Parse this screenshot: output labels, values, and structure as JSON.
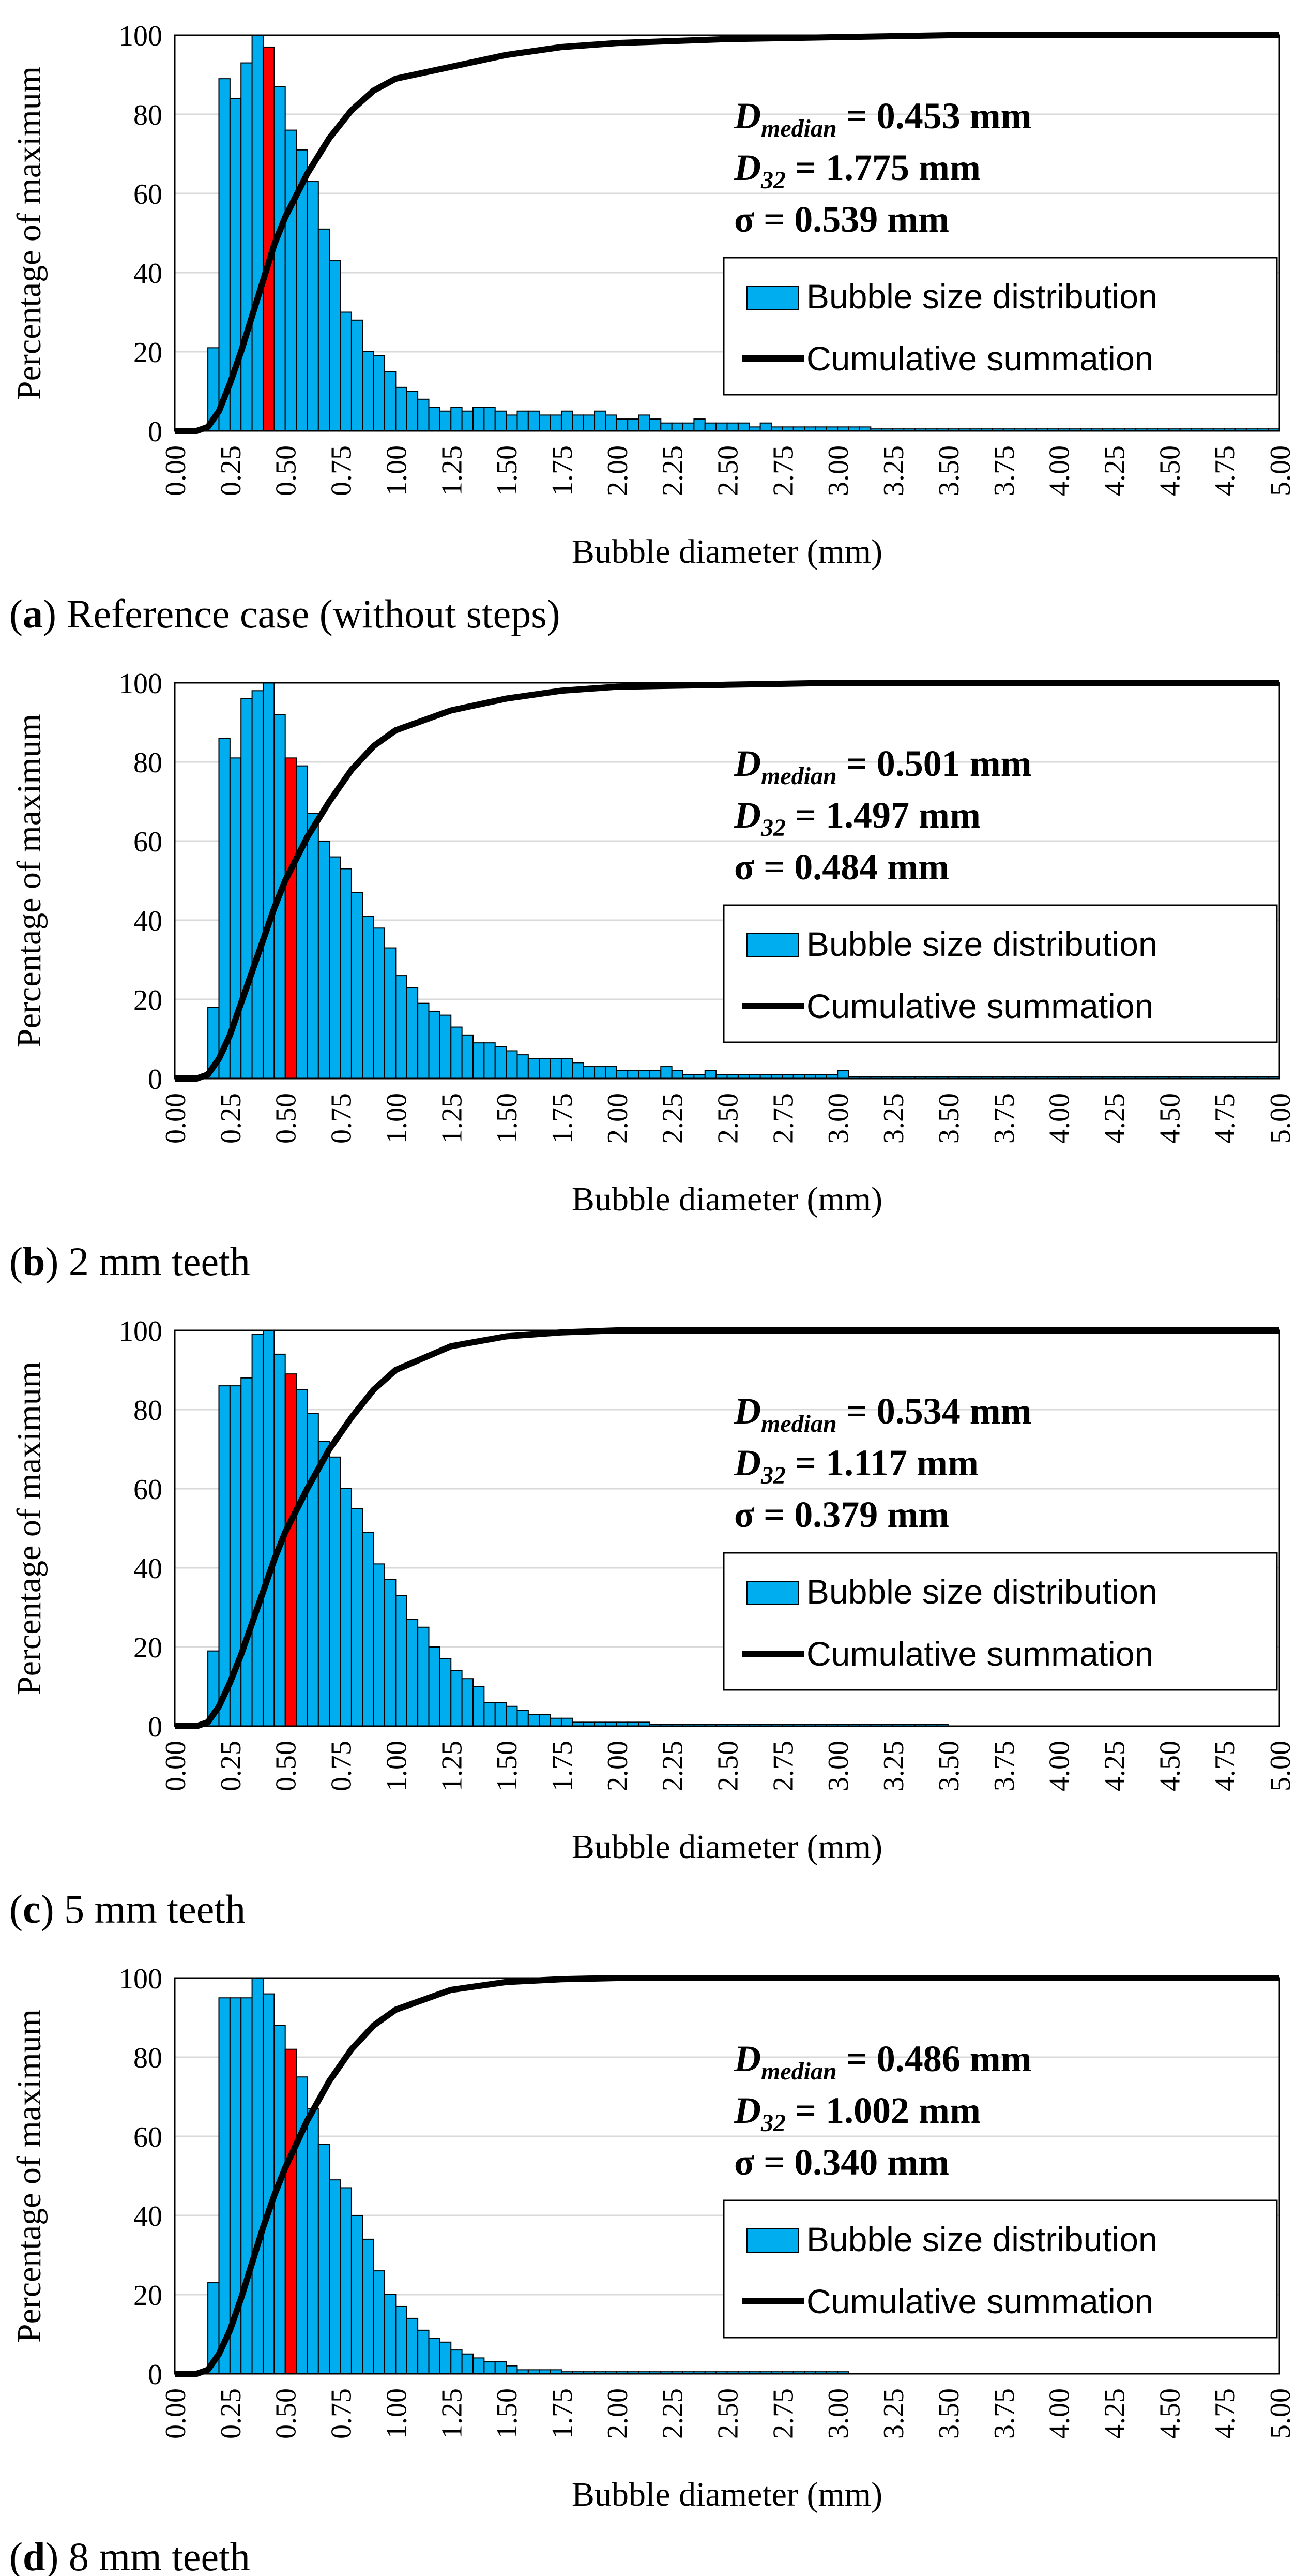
{
  "figure": {
    "colors": {
      "bar": "#00AEEF",
      "median_bar": "#FF0000",
      "bar_edge": "#000000",
      "cumulative_line": "#000000",
      "grid": "#D9D9D9"
    },
    "shared": {
      "ylabel": "Percentage of maximum",
      "xlabel": "Bubble diameter (mm)",
      "xlim": [
        0,
        5
      ],
      "ylim": [
        0,
        100
      ],
      "xticks": [
        "0.00",
        "0.25",
        "0.50",
        "0.75",
        "1.00",
        "1.25",
        "1.50",
        "1.75",
        "2.00",
        "2.25",
        "2.50",
        "2.75",
        "3.00",
        "3.25",
        "3.50",
        "3.75",
        "4.00",
        "4.25",
        "4.50",
        "4.75",
        "5.00"
      ],
      "yticks": [
        "0",
        "20",
        "40",
        "60",
        "80",
        "100"
      ],
      "legend": {
        "bar_label": "Bubble size distribution",
        "line_label": "Cumulative summation"
      },
      "grid": "horizontal",
      "legend_placement": "right",
      "bin_width_mm": 0.05
    }
  },
  "chart_data": [
    {
      "type": "bar",
      "caption": {
        "letter": "a",
        "text": "Reference case (without steps)"
      },
      "stats": {
        "d_median_label": "D",
        "d_median_sub": "median",
        "d_median_value": " = 0.453 mm",
        "d32_label": "D",
        "d32_sub": "32",
        "d32_value": " = 1.775 mm",
        "sigma_label": "σ = 0.539 mm"
      },
      "median_bar_x": 0.425,
      "bins_x": [
        0.025,
        0.075,
        0.125,
        0.175,
        0.225,
        0.275,
        0.325,
        0.375,
        0.425,
        0.475,
        0.525,
        0.575,
        0.625,
        0.675,
        0.725,
        0.775,
        0.825,
        0.875,
        0.925,
        0.975,
        1.025,
        1.075,
        1.125,
        1.175,
        1.225,
        1.275,
        1.325,
        1.375,
        1.425,
        1.475,
        1.525,
        1.575,
        1.625,
        1.675,
        1.725,
        1.775,
        1.825,
        1.875,
        1.925,
        1.975,
        2.025,
        2.075,
        2.125,
        2.175,
        2.225,
        2.275,
        2.325,
        2.375,
        2.425,
        2.475,
        2.525,
        2.575,
        2.625,
        2.675,
        2.725,
        2.775,
        2.825,
        2.875,
        2.925,
        2.975,
        3.025,
        3.075,
        3.125,
        3.175,
        3.225,
        3.275,
        3.325,
        3.375,
        3.425,
        3.475,
        3.525,
        3.575,
        3.625,
        3.675,
        3.725,
        3.775,
        3.825,
        3.875,
        3.925,
        3.975,
        4.025,
        4.075,
        4.125,
        4.175,
        4.225,
        4.275,
        4.325,
        4.375,
        4.425,
        4.475,
        4.525,
        4.575,
        4.625,
        4.675,
        4.725,
        4.775,
        4.825,
        4.875,
        4.925,
        4.975
      ],
      "bar_values": [
        0,
        0,
        0,
        21,
        89,
        84,
        93,
        100,
        97,
        87,
        76,
        71,
        63,
        51,
        43,
        30,
        28,
        20,
        19,
        15,
        11,
        10,
        8,
        6,
        5,
        6,
        5,
        6,
        6,
        5,
        4,
        5,
        5,
        4,
        4,
        5,
        4,
        4,
        5,
        4,
        3,
        3,
        4,
        3,
        2,
        2,
        2,
        3,
        2,
        2,
        2,
        2,
        1,
        2,
        1,
        1,
        1,
        1,
        1,
        1,
        1,
        1,
        1,
        0.5,
        0.5,
        0.5,
        0.5,
        0.5,
        0.5,
        0.5,
        0.5,
        0.5,
        0.5,
        0.5,
        0.5,
        0.5,
        0.5,
        0.5,
        0.5,
        0.5,
        0.5,
        0.5,
        0.5,
        0.5,
        0.5,
        0.5,
        0.5,
        0.5,
        0.5,
        0.5,
        0.5,
        0.5,
        0.5,
        0.5,
        0.5,
        0.5,
        0.5,
        0.5,
        0.5,
        0.5
      ],
      "cumulative": {
        "x": [
          0,
          0.1,
          0.15,
          0.2,
          0.25,
          0.3,
          0.35,
          0.4,
          0.45,
          0.5,
          0.6,
          0.7,
          0.8,
          0.9,
          1.0,
          1.25,
          1.5,
          1.75,
          2.0,
          2.5,
          3.0,
          3.5,
          4.0,
          4.5,
          5.0
        ],
        "y": [
          0,
          0,
          1,
          5,
          12,
          20,
          29,
          38,
          47,
          54,
          65,
          74,
          81,
          86,
          89,
          92,
          95,
          97,
          98,
          99,
          99.5,
          100,
          100,
          100,
          100
        ]
      }
    },
    {
      "type": "bar",
      "caption": {
        "letter": "b",
        "text": "2 mm teeth"
      },
      "stats": {
        "d_median_label": "D",
        "d_median_sub": "median",
        "d_median_value": " = 0.501 mm",
        "d32_label": "D",
        "d32_sub": "32",
        "d32_value": " = 1.497 mm",
        "sigma_label": "σ = 0.484 mm"
      },
      "median_bar_x": 0.525,
      "bins_x": [
        0.025,
        0.075,
        0.125,
        0.175,
        0.225,
        0.275,
        0.325,
        0.375,
        0.425,
        0.475,
        0.525,
        0.575,
        0.625,
        0.675,
        0.725,
        0.775,
        0.825,
        0.875,
        0.925,
        0.975,
        1.025,
        1.075,
        1.125,
        1.175,
        1.225,
        1.275,
        1.325,
        1.375,
        1.425,
        1.475,
        1.525,
        1.575,
        1.625,
        1.675,
        1.725,
        1.775,
        1.825,
        1.875,
        1.925,
        1.975,
        2.025,
        2.075,
        2.125,
        2.175,
        2.225,
        2.275,
        2.325,
        2.375,
        2.425,
        2.475,
        2.525,
        2.575,
        2.625,
        2.675,
        2.725,
        2.775,
        2.825,
        2.875,
        2.925,
        2.975,
        3.025,
        3.075,
        3.125,
        3.175,
        3.225,
        3.275,
        3.325,
        3.375,
        3.425,
        3.475,
        3.525,
        3.575,
        3.625,
        3.675,
        3.725,
        3.775,
        3.825,
        3.875,
        3.925,
        3.975,
        4.025,
        4.075,
        4.125,
        4.175,
        4.225,
        4.275,
        4.325,
        4.375,
        4.425,
        4.475,
        4.525,
        4.575,
        4.625,
        4.675,
        4.725,
        4.775,
        4.825,
        4.875,
        4.925,
        4.975
      ],
      "bar_values": [
        0,
        0,
        0,
        18,
        86,
        81,
        96,
        98,
        100,
        92,
        81,
        79,
        67,
        60,
        56,
        53,
        47,
        41,
        38,
        33,
        26,
        23,
        19,
        17,
        16,
        13,
        11,
        9,
        9,
        8,
        7,
        6,
        5,
        5,
        5,
        5,
        4,
        3,
        3,
        3,
        2,
        2,
        2,
        2,
        3,
        2,
        1,
        1,
        2,
        1,
        1,
        1,
        1,
        1,
        1,
        1,
        1,
        1,
        1,
        1,
        2,
        0.5,
        0.5,
        0.5,
        0.5,
        0.5,
        0.5,
        0.5,
        0.5,
        0.5,
        0.5,
        0.5,
        0.5,
        0.5,
        0.5,
        0.5,
        0.5,
        0.5,
        0.5,
        0.5,
        0.5,
        0.5,
        0.5,
        0.5,
        0.5,
        0.5,
        0.5,
        0.5,
        0.5,
        0.5,
        0.5,
        0.5,
        0.5,
        0.5,
        0.5,
        0.5,
        0.5,
        0.5,
        0.5,
        0.5
      ],
      "cumulative": {
        "x": [
          0,
          0.1,
          0.15,
          0.2,
          0.25,
          0.3,
          0.35,
          0.4,
          0.45,
          0.5,
          0.6,
          0.7,
          0.8,
          0.9,
          1.0,
          1.25,
          1.5,
          1.75,
          2.0,
          2.5,
          3.0,
          3.5,
          4.0,
          4.5,
          5.0
        ],
        "y": [
          0,
          0,
          1,
          5,
          11,
          19,
          27,
          35,
          43,
          50,
          61,
          70,
          78,
          84,
          88,
          93,
          96,
          98,
          99,
          99.5,
          100,
          100,
          100,
          100,
          100
        ]
      }
    },
    {
      "type": "bar",
      "caption": {
        "letter": "c",
        "text": "5 mm teeth"
      },
      "stats": {
        "d_median_label": "D",
        "d_median_sub": "median",
        "d_median_value": " = 0.534 mm",
        "d32_label": "D",
        "d32_sub": "32",
        "d32_value": " = 1.117 mm",
        "sigma_label": "σ = 0.379 mm"
      },
      "median_bar_x": 0.525,
      "bins_x": [
        0.025,
        0.075,
        0.125,
        0.175,
        0.225,
        0.275,
        0.325,
        0.375,
        0.425,
        0.475,
        0.525,
        0.575,
        0.625,
        0.675,
        0.725,
        0.775,
        0.825,
        0.875,
        0.925,
        0.975,
        1.025,
        1.075,
        1.125,
        1.175,
        1.225,
        1.275,
        1.325,
        1.375,
        1.425,
        1.475,
        1.525,
        1.575,
        1.625,
        1.675,
        1.725,
        1.775,
        1.825,
        1.875,
        1.925,
        1.975,
        2.025,
        2.075,
        2.125,
        2.175,
        2.225,
        2.275,
        2.325,
        2.375,
        2.425,
        2.475,
        2.525,
        2.575,
        2.625,
        2.675,
        2.725,
        2.775,
        2.825,
        2.875,
        2.925,
        2.975,
        3.025,
        3.075,
        3.125,
        3.175,
        3.225,
        3.275,
        3.325,
        3.375,
        3.425,
        3.475,
        3.525,
        3.575,
        3.625,
        3.675,
        3.725,
        3.775,
        3.825,
        3.875,
        3.925,
        3.975,
        4.025,
        4.075,
        4.125,
        4.175,
        4.225,
        4.275,
        4.325,
        4.375,
        4.425,
        4.475,
        4.525,
        4.575,
        4.625,
        4.675,
        4.725,
        4.775,
        4.825,
        4.875,
        4.925,
        4.975
      ],
      "bar_values": [
        0,
        0,
        0,
        19,
        86,
        86,
        88,
        99,
        100,
        94,
        89,
        85,
        79,
        72,
        68,
        60,
        55,
        49,
        41,
        37,
        33,
        27,
        25,
        20,
        17,
        14,
        12,
        10,
        6,
        6,
        5,
        4,
        3,
        3,
        2,
        2,
        1,
        1,
        1,
        1,
        1,
        1,
        1,
        0.5,
        0.5,
        0.5,
        0.5,
        0.5,
        0.5,
        0.5,
        0.5,
        0.5,
        0.5,
        0.5,
        0.5,
        0.5,
        0.5,
        0.5,
        0.5,
        0.5,
        0.5,
        0.5,
        0.5,
        0.5,
        0.5,
        0.5,
        0.5,
        0.5,
        0.5,
        0.5,
        0,
        0,
        0,
        0,
        0,
        0,
        0,
        0,
        0,
        0,
        0,
        0,
        0,
        0,
        0,
        0,
        0,
        0,
        0,
        0,
        0,
        0,
        0,
        0,
        0,
        0,
        0,
        0,
        0,
        0
      ],
      "cumulative": {
        "x": [
          0,
          0.1,
          0.15,
          0.2,
          0.25,
          0.3,
          0.35,
          0.4,
          0.45,
          0.5,
          0.6,
          0.7,
          0.8,
          0.9,
          1.0,
          1.25,
          1.5,
          1.75,
          2.0,
          2.5,
          3.0,
          3.5,
          4.0,
          4.5,
          5.0
        ],
        "y": [
          0,
          0,
          1,
          5,
          11,
          18,
          26,
          34,
          42,
          49,
          60,
          70,
          78,
          85,
          90,
          96,
          98.5,
          99.5,
          100,
          100,
          100,
          100,
          100,
          100,
          100
        ]
      }
    },
    {
      "type": "bar",
      "caption": {
        "letter": "d",
        "text": "8 mm teeth"
      },
      "stats": {
        "d_median_label": "D",
        "d_median_sub": "median",
        "d_median_value": " = 0.486 mm",
        "d32_label": "D",
        "d32_sub": "32",
        "d32_value": " = 1.002 mm",
        "sigma_label": "σ = 0.340 mm"
      },
      "median_bar_x": 0.525,
      "bins_x": [
        0.025,
        0.075,
        0.125,
        0.175,
        0.225,
        0.275,
        0.325,
        0.375,
        0.425,
        0.475,
        0.525,
        0.575,
        0.625,
        0.675,
        0.725,
        0.775,
        0.825,
        0.875,
        0.925,
        0.975,
        1.025,
        1.075,
        1.125,
        1.175,
        1.225,
        1.275,
        1.325,
        1.375,
        1.425,
        1.475,
        1.525,
        1.575,
        1.625,
        1.675,
        1.725,
        1.775,
        1.825,
        1.875,
        1.925,
        1.975,
        2.025,
        2.075,
        2.125,
        2.175,
        2.225,
        2.275,
        2.325,
        2.375,
        2.425,
        2.475,
        2.525,
        2.575,
        2.625,
        2.675,
        2.725,
        2.775,
        2.825,
        2.875,
        2.925,
        2.975,
        3.025,
        3.075,
        3.125,
        3.175,
        3.225,
        3.275,
        3.325,
        3.375,
        3.425,
        3.475,
        3.525,
        3.575,
        3.625,
        3.675,
        3.725,
        3.775,
        3.825,
        3.875,
        3.925,
        3.975,
        4.025,
        4.075,
        4.125,
        4.175,
        4.225,
        4.275,
        4.325,
        4.375,
        4.425,
        4.475,
        4.525,
        4.575,
        4.625,
        4.675,
        4.725,
        4.775,
        4.825,
        4.875,
        4.925,
        4.975
      ],
      "bar_values": [
        0,
        0,
        0,
        23,
        95,
        95,
        95,
        100,
        96,
        88,
        82,
        75,
        67,
        58,
        49,
        47,
        40,
        34,
        26,
        20,
        17,
        14,
        11,
        9,
        8,
        6,
        5,
        4,
        3,
        3,
        2,
        1,
        1,
        1,
        1,
        0.5,
        0.5,
        0.5,
        0.5,
        0.5,
        0.5,
        0.5,
        0.5,
        0.5,
        0.5,
        0.5,
        0.5,
        0.5,
        0.5,
        0.5,
        0.5,
        0.5,
        0.5,
        0.5,
        0.5,
        0.5,
        0.5,
        0.5,
        0.5,
        0.5,
        0.5,
        0,
        0,
        0,
        0,
        0,
        0,
        0,
        0,
        0,
        0,
        0,
        0,
        0,
        0,
        0,
        0,
        0,
        0,
        0,
        0,
        0,
        0,
        0,
        0,
        0,
        0,
        0,
        0,
        0,
        0,
        0,
        0,
        0,
        0,
        0,
        0,
        0,
        0,
        0
      ],
      "cumulative": {
        "x": [
          0,
          0.1,
          0.15,
          0.2,
          0.25,
          0.3,
          0.35,
          0.4,
          0.45,
          0.5,
          0.6,
          0.7,
          0.8,
          0.9,
          1.0,
          1.25,
          1.5,
          1.75,
          2.0,
          2.5,
          3.0,
          3.5,
          4.0,
          4.5,
          5.0
        ],
        "y": [
          0,
          0,
          1,
          5,
          11,
          19,
          28,
          37,
          45,
          52,
          64,
          74,
          82,
          88,
          92,
          97,
          99,
          99.7,
          100,
          100,
          100,
          100,
          100,
          100,
          100
        ]
      }
    }
  ]
}
